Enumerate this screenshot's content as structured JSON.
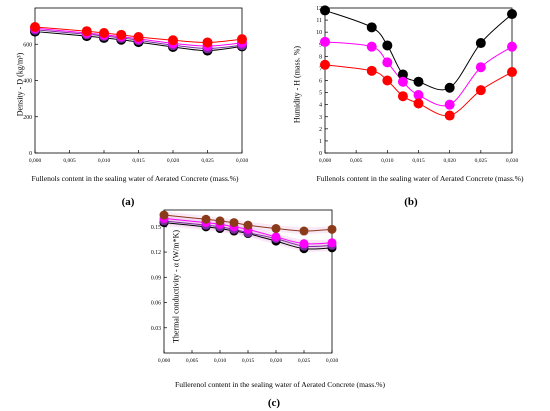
{
  "captions": [
    "(a)",
    "(b)",
    "(c)"
  ],
  "chart_data": [
    {
      "type": "line",
      "panel": "a",
      "xlabel": "Fullenols content in the sealing water of  Aerated Concrete (mass.%)",
      "ylabel": "Density - D (kg/m³)",
      "xlim": [
        0,
        0.03
      ],
      "ylim": [
        0,
        800
      ],
      "xticks": [
        "0,000",
        "0,005",
        "0,010",
        "0,015",
        "0,020",
        "0,025",
        "0,030"
      ],
      "yticks": [
        "0",
        "200",
        "400",
        "600"
      ],
      "x": [
        0,
        0.0075,
        0.01,
        0.0125,
        0.015,
        0.02,
        0.025,
        0.03
      ],
      "series": [
        {
          "color": "#000000",
          "values": [
            670,
            645,
            635,
            625,
            612,
            585,
            565,
            588
          ]
        },
        {
          "color": "#7a2ea0",
          "values": [
            680,
            655,
            645,
            635,
            622,
            595,
            577,
            595
          ]
        },
        {
          "color": "#ff00ff",
          "values": [
            688,
            662,
            652,
            642,
            630,
            605,
            590,
            608
          ]
        },
        {
          "color": "#ff0000",
          "values": [
            695,
            672,
            662,
            652,
            640,
            622,
            610,
            628
          ]
        }
      ]
    },
    {
      "type": "line",
      "panel": "b",
      "xlabel": "Fullenols content in the sealing water of  Aerated Concrete (mass.%)",
      "ylabel": "Humidity - H (mass. %)",
      "xlim": [
        0,
        0.03
      ],
      "ylim": [
        0,
        12
      ],
      "xticks": [
        "0,000",
        "0,005",
        "0,010",
        "0,015",
        "0,020",
        "0,025",
        "0,030"
      ],
      "yticks": [
        "0",
        "1",
        "2",
        "3",
        "4",
        "5",
        "6",
        "7",
        "8",
        "9",
        "10",
        "11",
        "12"
      ],
      "x": [
        0,
        0.0075,
        0.01,
        0.0125,
        0.015,
        0.02,
        0.025,
        0.03
      ],
      "series": [
        {
          "color": "#000000",
          "values": [
            11.8,
            10.4,
            8.9,
            6.5,
            5.9,
            5.4,
            9.1,
            11.5
          ]
        },
        {
          "color": "#ff00ff",
          "values": [
            9.2,
            8.8,
            7.5,
            5.9,
            4.8,
            4.0,
            7.1,
            8.8
          ]
        },
        {
          "color": "#ff0000",
          "values": [
            7.3,
            6.8,
            6.0,
            4.7,
            4.1,
            3.1,
            5.2,
            6.7
          ]
        }
      ]
    },
    {
      "type": "line",
      "panel": "c",
      "xlabel": "Fullerenol content in the sealing water of Aerated Concrete (mass.%)",
      "ylabel": "Thermal conductivity - α (W/m*K)",
      "xlim": [
        0,
        0.03
      ],
      "ylim": [
        0,
        0.17
      ],
      "xticks": [
        "0,000",
        "0,005",
        "0,010",
        "0,015",
        "0,020",
        "0,025",
        "0,030"
      ],
      "yticks": [
        "0.03",
        "0.06",
        "0.09",
        "0.12",
        "0.15"
      ],
      "x": [
        0,
        0.0075,
        0.01,
        0.0125,
        0.015,
        0.02,
        0.025,
        0.03
      ],
      "series": [
        {
          "color": "#000000",
          "values": [
            0.155,
            0.15,
            0.148,
            0.145,
            0.142,
            0.133,
            0.124,
            0.125
          ]
        },
        {
          "color": "#7a2ea0",
          "values": [
            0.157,
            0.152,
            0.15,
            0.147,
            0.143,
            0.136,
            0.127,
            0.128
          ]
        },
        {
          "color": "#ff00ff",
          "values": [
            0.16,
            0.155,
            0.153,
            0.15,
            0.147,
            0.138,
            0.13,
            0.131
          ]
        },
        {
          "color": "#8b3a1a",
          "values": [
            0.164,
            0.159,
            0.157,
            0.155,
            0.152,
            0.148,
            0.145,
            0.147
          ]
        }
      ]
    }
  ]
}
